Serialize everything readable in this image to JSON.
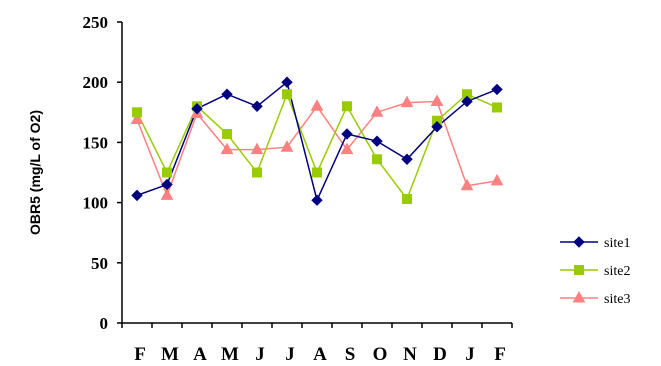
{
  "chart_data": {
    "type": "line",
    "title": "",
    "xlabel": "",
    "ylabel": "OBR5 (mg/L of O2)",
    "ylim": [
      0,
      250
    ],
    "yticks": [
      0,
      50,
      100,
      150,
      200,
      250
    ],
    "categories": [
      "F",
      "M",
      "A",
      "M",
      "J",
      "J",
      "A",
      "S",
      "O",
      "N",
      "D",
      "J",
      "F"
    ],
    "grid": false,
    "legend_position": "right",
    "series": [
      {
        "name": "site1",
        "color": "#000080",
        "marker": "diamond",
        "values": [
          106,
          115,
          178,
          190,
          180,
          200,
          102,
          157,
          151,
          136,
          163,
          184,
          194
        ]
      },
      {
        "name": "site2",
        "color": "#99CC00",
        "marker": "square",
        "values": [
          175,
          125,
          180,
          157,
          125,
          190,
          125,
          180,
          136,
          103,
          168,
          190,
          179
        ]
      },
      {
        "name": "site3",
        "color": "#FF8080",
        "marker": "triangle",
        "values": [
          169,
          106,
          174,
          144,
          144,
          146,
          180,
          144,
          175,
          183,
          184,
          114,
          118
        ]
      }
    ]
  }
}
